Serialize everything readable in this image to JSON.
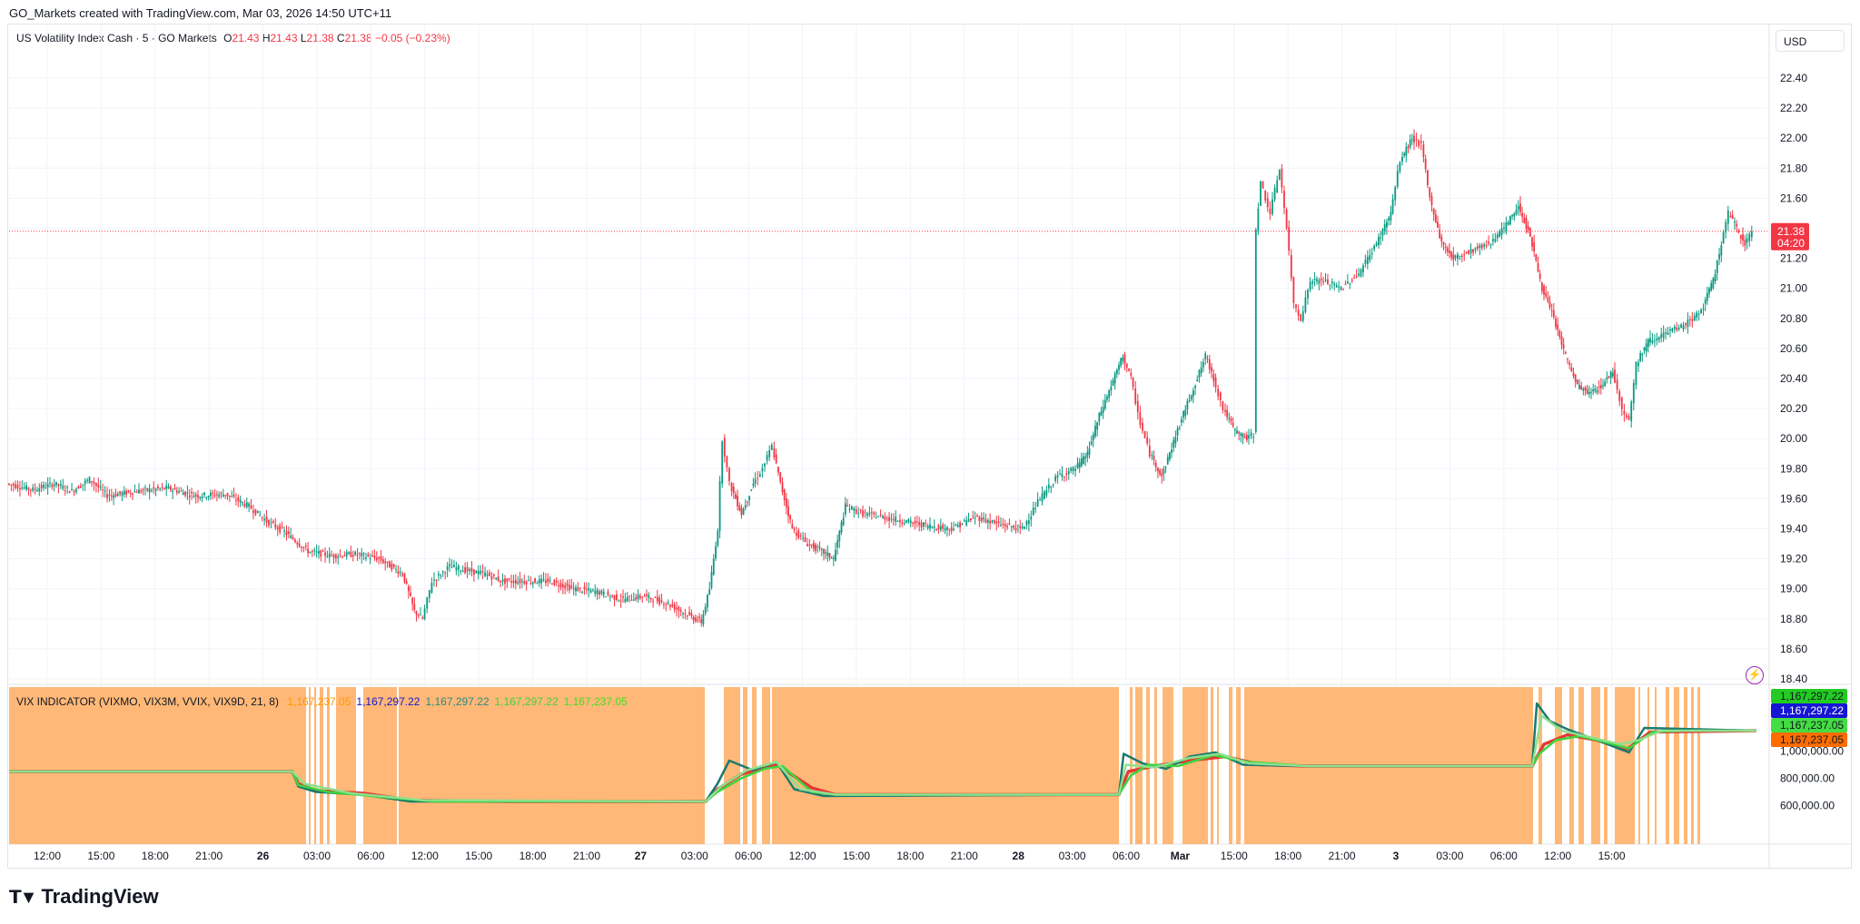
{
  "header": {
    "text": "GO_Markets created with TradingView.com, Mar 03, 2026 14:50 UTC+11"
  },
  "legend": {
    "symbol": "US Volatility Index Cash · 5 · GO Markets",
    "o_label": "O",
    "o": "21.43",
    "h_label": "H",
    "h": "21.43",
    "l_label": "L",
    "l": "21.38",
    "c_label": "C",
    "c": "21.38",
    "change": "−0.05 (−0.23%)"
  },
  "currency_button": "USD",
  "price_axis": {
    "ticks": [
      "22.40",
      "22.20",
      "22.00",
      "21.80",
      "21.60",
      "21.40",
      "21.20",
      "21.00",
      "20.80",
      "20.60",
      "20.40",
      "20.20",
      "20.00",
      "19.80",
      "19.60",
      "19.40",
      "19.20",
      "19.00",
      "18.80",
      "18.60",
      "18.40"
    ],
    "last_price": "21.38",
    "countdown": "04:20"
  },
  "indicator": {
    "name": "VIX INDICATOR (VIXMO, VIX3M, VVIX, VIX9D, 21, 8)",
    "values": [
      {
        "text": "1,167,237.05",
        "color": "#ff9800"
      },
      {
        "text": "1,167,297.22",
        "color": "#1515d4"
      },
      {
        "text": "1,167,297.22",
        "color": "#2b8a7e"
      },
      {
        "text": "1,167,297.22",
        "color": "#3fd43f"
      },
      {
        "text": "1,167,237.05",
        "color": "#44dd22"
      }
    ],
    "axis_ticks": [
      "1,000,000.00",
      "800,000.00",
      "600,000.00"
    ],
    "labels": [
      {
        "text": "1,167,297.22",
        "color": "#22cc22"
      },
      {
        "text": "1,167,297.22",
        "color": "#1515d4"
      },
      {
        "text": "1,167,237.05",
        "color": "#44dd44"
      },
      {
        "text": "1,167,237.05",
        "color": "#ff6d00"
      }
    ]
  },
  "time_axis": [
    "12:00",
    "15:00",
    "18:00",
    "21:00",
    "26",
    "03:00",
    "06:00",
    "12:00",
    "15:00",
    "18:00",
    "21:00",
    "27",
    "03:00",
    "06:00",
    "12:00",
    "15:00",
    "18:00",
    "21:00",
    "28",
    "03:00",
    "06:00",
    "Mar",
    "15:00",
    "18:00",
    "21:00",
    "3",
    "03:00",
    "06:00",
    "12:00",
    "15:00"
  ],
  "colors": {
    "up": "#089981",
    "down": "#f23645",
    "band": "#ffb877",
    "grid": "#f0f3fa"
  },
  "footer": {
    "brand": "TradingView"
  },
  "chart_data": [
    {
      "type": "candlestick",
      "title": "US Volatility Index Cash · 5 · GO Markets",
      "x_ticks": [
        "12:00",
        "15:00",
        "18:00",
        "21:00",
        "26",
        "03:00",
        "06:00",
        "12:00",
        "15:00",
        "18:00",
        "21:00",
        "27",
        "03:00",
        "06:00",
        "12:00",
        "15:00",
        "18:00",
        "21:00",
        "28",
        "03:00",
        "06:00",
        "Mar",
        "15:00",
        "18:00",
        "21:00",
        "3",
        "03:00",
        "06:00",
        "12:00",
        "15:00"
      ],
      "ylim": [
        18.4,
        22.4
      ],
      "close_path": [
        [
          0,
          19.7
        ],
        [
          22,
          19.66
        ],
        [
          40,
          19.7
        ],
        [
          55,
          19.65
        ],
        [
          70,
          19.73
        ],
        [
          85,
          19.62
        ],
        [
          110,
          19.65
        ],
        [
          135,
          19.67
        ],
        [
          160,
          19.62
        ],
        [
          185,
          19.63
        ],
        [
          205,
          19.55
        ],
        [
          220,
          19.45
        ],
        [
          235,
          19.38
        ],
        [
          255,
          19.25
        ],
        [
          275,
          19.22
        ],
        [
          295,
          19.23
        ],
        [
          315,
          19.2
        ],
        [
          335,
          19.1
        ],
        [
          345,
          18.85
        ],
        [
          352,
          18.8
        ],
        [
          360,
          19.05
        ],
        [
          375,
          19.15
        ],
        [
          390,
          19.12
        ],
        [
          405,
          19.1
        ],
        [
          420,
          19.05
        ],
        [
          440,
          19.05
        ],
        [
          460,
          19.05
        ],
        [
          480,
          19.0
        ],
        [
          500,
          18.98
        ],
        [
          520,
          18.93
        ],
        [
          540,
          18.95
        ],
        [
          560,
          18.9
        ],
        [
          578,
          18.82
        ],
        [
          588,
          18.78
        ],
        [
          595,
          19.0
        ],
        [
          602,
          19.4
        ],
        [
          606,
          20.0
        ],
        [
          612,
          19.7
        ],
        [
          622,
          19.5
        ],
        [
          632,
          19.7
        ],
        [
          640,
          19.8
        ],
        [
          648,
          19.95
        ],
        [
          655,
          19.7
        ],
        [
          665,
          19.4
        ],
        [
          678,
          19.3
        ],
        [
          690,
          19.25
        ],
        [
          700,
          19.2
        ],
        [
          710,
          19.55
        ],
        [
          725,
          19.5
        ],
        [
          740,
          19.48
        ],
        [
          760,
          19.45
        ],
        [
          780,
          19.42
        ],
        [
          800,
          19.4
        ],
        [
          820,
          19.48
        ],
        [
          840,
          19.43
        ],
        [
          860,
          19.4
        ],
        [
          875,
          19.6
        ],
        [
          890,
          19.75
        ],
        [
          905,
          19.8
        ],
        [
          915,
          19.9
        ],
        [
          925,
          20.15
        ],
        [
          935,
          20.35
        ],
        [
          945,
          20.55
        ],
        [
          952,
          20.4
        ],
        [
          960,
          20.1
        ],
        [
          968,
          19.9
        ],
        [
          978,
          19.75
        ],
        [
          988,
          19.98
        ],
        [
          998,
          20.2
        ],
        [
          1008,
          20.4
        ],
        [
          1015,
          20.55
        ],
        [
          1022,
          20.4
        ],
        [
          1030,
          20.2
        ],
        [
          1040,
          20.05
        ],
        [
          1050,
          20.0
        ],
        [
          1056,
          20.03
        ],
        [
          1058,
          21.4
        ],
        [
          1062,
          21.7
        ],
        [
          1070,
          21.5
        ],
        [
          1078,
          21.8
        ],
        [
          1084,
          21.4
        ],
        [
          1090,
          20.9
        ],
        [
          1096,
          20.8
        ],
        [
          1104,
          21.05
        ],
        [
          1115,
          21.05
        ],
        [
          1130,
          21.0
        ],
        [
          1145,
          21.1
        ],
        [
          1160,
          21.3
        ],
        [
          1172,
          21.5
        ],
        [
          1180,
          21.85
        ],
        [
          1190,
          22.0
        ],
        [
          1198,
          21.95
        ],
        [
          1205,
          21.6
        ],
        [
          1215,
          21.3
        ],
        [
          1225,
          21.2
        ],
        [
          1240,
          21.25
        ],
        [
          1255,
          21.3
        ],
        [
          1268,
          21.4
        ],
        [
          1280,
          21.55
        ],
        [
          1290,
          21.35
        ],
        [
          1300,
          21.0
        ],
        [
          1310,
          20.8
        ],
        [
          1320,
          20.55
        ],
        [
          1330,
          20.35
        ],
        [
          1340,
          20.3
        ],
        [
          1350,
          20.35
        ],
        [
          1360,
          20.45
        ],
        [
          1368,
          20.2
        ],
        [
          1374,
          20.12
        ],
        [
          1380,
          20.5
        ],
        [
          1390,
          20.65
        ],
        [
          1405,
          20.7
        ],
        [
          1420,
          20.75
        ],
        [
          1435,
          20.85
        ],
        [
          1445,
          21.05
        ],
        [
          1452,
          21.3
        ],
        [
          1458,
          21.5
        ],
        [
          1465,
          21.4
        ],
        [
          1472,
          21.3
        ],
        [
          1478,
          21.38
        ]
      ]
    },
    {
      "type": "line",
      "title": "VIX INDICATOR (VIXMO, VIX3M, VVIX, VIX9D, 21, 8)",
      "ylim": [
        540000,
        1350000
      ],
      "series": [
        {
          "color": "#e53935",
          "values": [
            [
              0,
              850000
            ],
            [
              240,
              850000
            ],
            [
              245,
              760000
            ],
            [
              260,
              710000
            ],
            [
              300,
              690000
            ],
            [
              340,
              640000
            ],
            [
              420,
              630000
            ],
            [
              590,
              630000
            ],
            [
              600,
              720000
            ],
            [
              620,
              830000
            ],
            [
              650,
              900000
            ],
            [
              680,
              730000
            ],
            [
              700,
              680000
            ],
            [
              940,
              680000
            ],
            [
              948,
              850000
            ],
            [
              970,
              890000
            ],
            [
              1000,
              930000
            ],
            [
              1030,
              960000
            ],
            [
              1060,
              900000
            ],
            [
              1100,
              890000
            ],
            [
              1290,
              890000
            ],
            [
              1300,
              1050000
            ],
            [
              1320,
              1120000
            ],
            [
              1345,
              1080000
            ],
            [
              1370,
              1010000
            ],
            [
              1390,
              1140000
            ],
            [
              1480,
              1150000
            ]
          ]
        },
        {
          "color": "#1b7a6e",
          "values": [
            [
              0,
              850000
            ],
            [
              240,
              850000
            ],
            [
              245,
              740000
            ],
            [
              260,
              700000
            ],
            [
              300,
              680000
            ],
            [
              340,
              630000
            ],
            [
              590,
              630000
            ],
            [
              600,
              760000
            ],
            [
              610,
              930000
            ],
            [
              630,
              860000
            ],
            [
              650,
              920000
            ],
            [
              665,
              720000
            ],
            [
              690,
              670000
            ],
            [
              940,
              680000
            ],
            [
              944,
              980000
            ],
            [
              960,
              910000
            ],
            [
              980,
              870000
            ],
            [
              1000,
              960000
            ],
            [
              1022,
              990000
            ],
            [
              1045,
              900000
            ],
            [
              1100,
              890000
            ],
            [
              1290,
              890000
            ],
            [
              1294,
              1350000
            ],
            [
              1305,
              1220000
            ],
            [
              1320,
              1160000
            ],
            [
              1345,
              1080000
            ],
            [
              1372,
              990000
            ],
            [
              1385,
              1170000
            ],
            [
              1480,
              1150000
            ]
          ]
        },
        {
          "color": "#3fd43f",
          "values": [
            [
              0,
              850000
            ],
            [
              240,
              850000
            ],
            [
              245,
              750000
            ],
            [
              270,
              700000
            ],
            [
              320,
              660000
            ],
            [
              360,
              630000
            ],
            [
              590,
              630000
            ],
            [
              600,
              700000
            ],
            [
              620,
              800000
            ],
            [
              640,
              870000
            ],
            [
              655,
              890000
            ],
            [
              680,
              700000
            ],
            [
              700,
              680000
            ],
            [
              940,
              680000
            ],
            [
              950,
              820000
            ],
            [
              965,
              900000
            ],
            [
              990,
              890000
            ],
            [
              1020,
              970000
            ],
            [
              1050,
              920000
            ],
            [
              1100,
              890000
            ],
            [
              1290,
              890000
            ],
            [
              1296,
              980000
            ],
            [
              1310,
              1080000
            ],
            [
              1330,
              1110000
            ],
            [
              1350,
              1070000
            ],
            [
              1372,
              1020000
            ],
            [
              1392,
              1140000
            ],
            [
              1420,
              1150000
            ],
            [
              1480,
              1150000
            ]
          ]
        },
        {
          "color": "#8ee08e",
          "values": [
            [
              0,
              850000
            ],
            [
              240,
              850000
            ],
            [
              250,
              760000
            ],
            [
              290,
              690000
            ],
            [
              350,
              640000
            ],
            [
              590,
              630000
            ],
            [
              603,
              740000
            ],
            [
              625,
              860000
            ],
            [
              650,
              920000
            ],
            [
              670,
              720000
            ],
            [
              700,
              680000
            ],
            [
              940,
              680000
            ],
            [
              946,
              900000
            ],
            [
              970,
              880000
            ],
            [
              1000,
              950000
            ],
            [
              1025,
              980000
            ],
            [
              1050,
              910000
            ],
            [
              1100,
              890000
            ],
            [
              1290,
              890000
            ],
            [
              1298,
              1260000
            ],
            [
              1315,
              1150000
            ],
            [
              1340,
              1100000
            ],
            [
              1365,
              1050000
            ],
            [
              1380,
              1080000
            ],
            [
              1400,
              1150000
            ],
            [
              1480,
              1150000
            ]
          ]
        }
      ]
    }
  ]
}
